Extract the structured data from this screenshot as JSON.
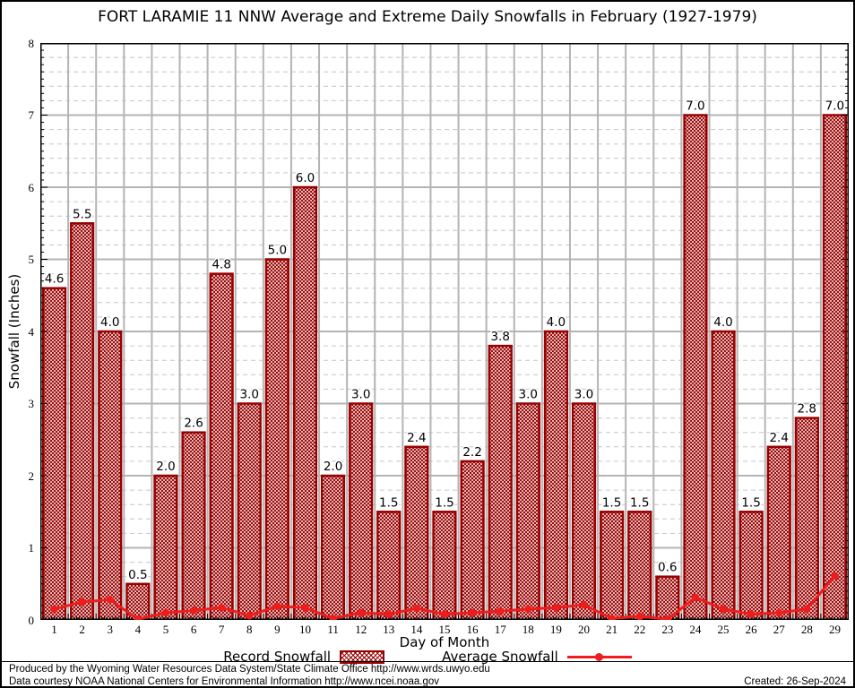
{
  "title": "FORT LARAMIE 11 NNW Average and Extreme Daily Snowfalls in February (1927-1979)",
  "chart_data": {
    "type": "bar",
    "categories": [
      1,
      2,
      3,
      4,
      5,
      6,
      7,
      8,
      9,
      10,
      11,
      12,
      13,
      14,
      15,
      16,
      17,
      18,
      19,
      20,
      21,
      22,
      23,
      24,
      25,
      26,
      27,
      28,
      29
    ],
    "series": [
      {
        "name": "Record Snowfall",
        "type": "bar",
        "values": [
          4.6,
          5.5,
          4.0,
          0.5,
          2.0,
          2.6,
          4.8,
          3.0,
          5.0,
          6.0,
          2.0,
          3.0,
          1.5,
          2.4,
          1.5,
          2.2,
          3.8,
          3.0,
          4.0,
          3.0,
          1.5,
          1.5,
          0.6,
          7.0,
          4.0,
          1.5,
          2.4,
          2.8,
          7.0
        ]
      },
      {
        "name": "Average Snowfall",
        "type": "line",
        "values": [
          0.15,
          0.25,
          0.28,
          0.01,
          0.1,
          0.13,
          0.17,
          0.06,
          0.19,
          0.17,
          0.02,
          0.1,
          0.08,
          0.16,
          0.08,
          0.1,
          0.12,
          0.15,
          0.17,
          0.21,
          0.02,
          0.05,
          0.01,
          0.31,
          0.15,
          0.08,
          0.1,
          0.15,
          0.61
        ]
      }
    ],
    "title": "FORT LARAMIE 11 NNW Average and Extreme Daily Snowfalls in February (1927-1979)",
    "xlabel": "Day of Month",
    "ylabel": "Snowfall (Inches)",
    "ylim": [
      0,
      8
    ],
    "y_major_step": 1,
    "y_minor_step": 0.2,
    "grid": "major solid gray, minor dashed; vertical lines at day boundaries",
    "legend_position": "bottom",
    "bar_color": "#990000",
    "bar_fill": "crosshatch",
    "line_color": "#ee1c1c"
  },
  "legend": {
    "record_label": "Record Snowfall",
    "average_label": "Average Snowfall"
  },
  "footer": {
    "line1": "Produced by the Wyoming Water Resources Data System/State Climate Office http://www.wrds.uwyo.edu",
    "line2": "Data courtesy NOAA National Centers for Environmental Information http://www.ncei.noaa.gov",
    "created": "Created: 26-Sep-2024"
  }
}
